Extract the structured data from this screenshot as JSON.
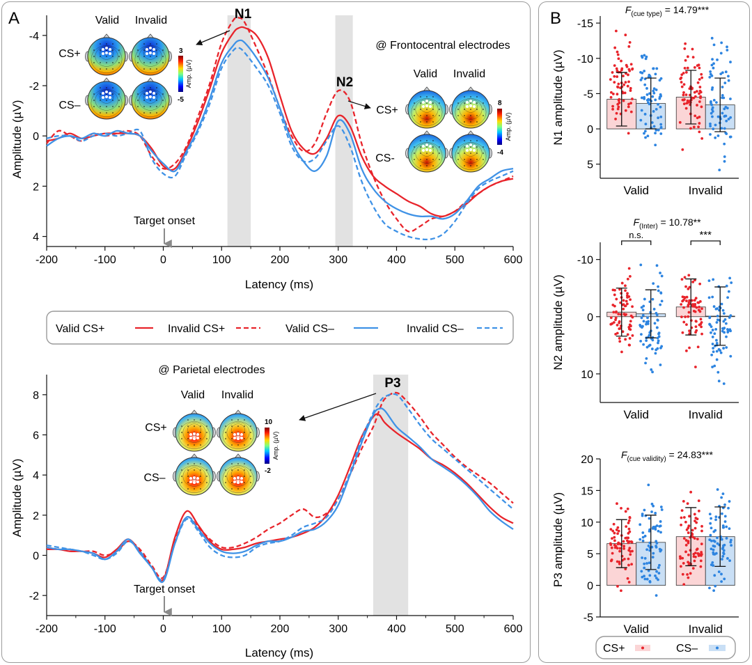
{
  "panels": {
    "A": "A",
    "B": "B"
  },
  "colors": {
    "red": "#e8242b",
    "blue": "#3f92e6",
    "bar_red": "#fbd5d6",
    "bar_blue": "#c9dff5",
    "gray_band": "#e2e2e2",
    "dot_red": "#e8242b",
    "dot_blue": "#2d84e0"
  },
  "legend": {
    "valid_csplus": "Valid CS+",
    "invalid_csplus": "Invalid CS+",
    "valid_csminus": "Valid CS–",
    "invalid_csminus": "Invalid CS–"
  },
  "legend_b": {
    "csplus": "CS+",
    "csminus": "CS–"
  },
  "topo": {
    "top": {
      "valid": "Valid",
      "invalid": "Invalid",
      "csplus": "CS+",
      "csminus": "CS–",
      "cb_max": "3",
      "cb_min": "-5",
      "cb_label": "Amp. (µV)"
    },
    "n2": {
      "valid": "Valid",
      "invalid": "Invalid",
      "csplus": "CS+",
      "csminus": "CS-",
      "cb_max": "8",
      "cb_min": "-4",
      "cb_label": "Amp. (µV)"
    },
    "p3": {
      "valid": "Valid",
      "invalid": "Invalid",
      "csplus": "CS+",
      "csminus": "CS–",
      "cb_max": "10",
      "cb_min": "-2",
      "cb_label": "Amp. (µV)"
    }
  },
  "chart_data": [
    {
      "id": "erp_frontocentral",
      "type": "line",
      "annotation": "@ Frontocentral electrodes",
      "xlabel": "Latency (ms)",
      "ylabel": "Amplitude (µV)",
      "xlim": [
        -200,
        600
      ],
      "ylim": [
        4.4,
        -4.8
      ],
      "y_inverted": true,
      "x_ticks": [
        -200,
        -100,
        0,
        100,
        200,
        300,
        400,
        500,
        600
      ],
      "y_ticks": [
        -4,
        -2,
        0,
        2,
        4
      ],
      "y_tick_labels": [
        "-4",
        "-2",
        "0",
        "2",
        "4"
      ],
      "components": [
        {
          "name": "N1",
          "range": [
            110,
            150
          ]
        },
        {
          "name": "N2",
          "range": [
            295,
            325
          ]
        }
      ],
      "marker_label": "Target onset",
      "x": [
        -200,
        -180,
        -160,
        -140,
        -120,
        -100,
        -80,
        -60,
        -40,
        -20,
        0,
        20,
        40,
        60,
        80,
        100,
        120,
        130,
        140,
        160,
        180,
        200,
        220,
        240,
        260,
        280,
        300,
        320,
        340,
        360,
        380,
        400,
        420,
        440,
        460,
        480,
        500,
        520,
        540,
        560,
        580,
        600
      ],
      "series": [
        {
          "name": "Valid CS+",
          "style": "solid",
          "color": "#e8242b",
          "values": [
            0.2,
            0.1,
            -0.1,
            0.1,
            0.0,
            -0.1,
            -0.1,
            -0.1,
            0.0,
            0.5,
            1.2,
            1.3,
            0.5,
            -0.6,
            -1.9,
            -3.3,
            -4.1,
            -4.3,
            -4.3,
            -4.0,
            -3.1,
            -1.6,
            -0.2,
            0.5,
            0.7,
            0.1,
            -0.8,
            -0.4,
            0.8,
            1.6,
            2.0,
            2.3,
            2.6,
            2.8,
            3.1,
            3.2,
            3.0,
            2.7,
            2.3,
            2.0,
            1.8,
            1.7
          ]
        },
        {
          "name": "Invalid CS+",
          "style": "dashed",
          "color": "#e8242b",
          "values": [
            0.3,
            -0.2,
            0.0,
            0.2,
            -0.1,
            0.0,
            -0.1,
            -0.2,
            0.0,
            0.8,
            1.3,
            1.1,
            0.4,
            -0.8,
            -2.1,
            -3.7,
            -4.6,
            -4.7,
            -4.5,
            -3.5,
            -2.4,
            -1.1,
            0.0,
            0.6,
            0.3,
            -0.9,
            -1.8,
            -1.4,
            0.3,
            1.6,
            2.6,
            3.3,
            3.8,
            3.6,
            3.3,
            3.2,
            3.0,
            2.6,
            2.3,
            2.0,
            1.8,
            1.6
          ]
        },
        {
          "name": "Valid CS–",
          "style": "solid",
          "color": "#3f92e6",
          "values": [
            0.4,
            0.1,
            0.0,
            0.1,
            -0.1,
            0.0,
            -0.2,
            -0.1,
            0.0,
            0.6,
            1.1,
            1.4,
            0.6,
            -0.3,
            -1.5,
            -2.9,
            -3.6,
            -3.8,
            -3.7,
            -3.1,
            -2.3,
            -1.1,
            0.2,
            1.0,
            1.4,
            0.8,
            -0.6,
            -0.1,
            1.3,
            2.1,
            2.6,
            2.9,
            3.1,
            3.2,
            3.2,
            3.3,
            3.1,
            2.6,
            2.0,
            1.7,
            1.4,
            1.3
          ]
        },
        {
          "name": "Invalid CS–",
          "style": "dashed",
          "color": "#3f92e6",
          "values": [
            0.1,
            0.0,
            0.0,
            0.2,
            0.0,
            -0.1,
            0.0,
            -0.1,
            -0.2,
            0.9,
            1.5,
            1.6,
            0.7,
            -0.2,
            -1.3,
            -2.7,
            -3.4,
            -3.5,
            -3.3,
            -2.7,
            -2.0,
            -0.9,
            0.4,
            1.0,
            0.9,
            0.2,
            -0.4,
            0.4,
            1.8,
            2.8,
            3.5,
            3.8,
            4.0,
            4.1,
            4.1,
            3.9,
            3.4,
            2.7,
            2.1,
            1.8,
            1.6,
            1.4
          ]
        }
      ]
    },
    {
      "id": "erp_parietal",
      "type": "line",
      "annotation": "@ Parietal electrodes",
      "xlabel": "Latency (ms)",
      "ylabel": "Amplitude (µV)",
      "xlim": [
        -200,
        600
      ],
      "ylim": [
        -3,
        9
      ],
      "x_ticks": [
        -200,
        -100,
        0,
        100,
        200,
        300,
        400,
        500,
        600
      ],
      "y_ticks": [
        -2,
        0,
        2,
        4,
        6,
        8
      ],
      "components": [
        {
          "name": "P3",
          "range": [
            360,
            420
          ]
        }
      ],
      "marker_label": "Target onset",
      "x": [
        -200,
        -180,
        -160,
        -140,
        -120,
        -100,
        -80,
        -60,
        -40,
        -20,
        0,
        20,
        40,
        60,
        80,
        100,
        120,
        140,
        160,
        180,
        200,
        220,
        240,
        260,
        280,
        300,
        320,
        340,
        360,
        370,
        380,
        400,
        420,
        440,
        460,
        480,
        500,
        520,
        540,
        560,
        580,
        600
      ],
      "series": [
        {
          "name": "Valid CS+",
          "style": "solid",
          "color": "#e8242b",
          "values": [
            0.3,
            0.3,
            0.2,
            0.2,
            0.1,
            -0.1,
            0.3,
            0.8,
            0.2,
            -0.6,
            -1.2,
            0.9,
            2.2,
            1.5,
            0.7,
            0.3,
            0.3,
            0.4,
            0.6,
            0.7,
            0.8,
            0.9,
            1.1,
            1.4,
            2.0,
            3.0,
            4.4,
            5.9,
            6.9,
            7.0,
            6.6,
            6.1,
            5.7,
            5.3,
            4.8,
            4.5,
            4.1,
            3.6,
            3.0,
            2.4,
            1.9,
            1.6
          ]
        },
        {
          "name": "Invalid CS+",
          "style": "dashed",
          "color": "#e8242b",
          "values": [
            0.4,
            0.3,
            0.3,
            0.2,
            0.2,
            0.0,
            0.2,
            0.7,
            0.3,
            -0.5,
            -1.1,
            0.7,
            1.9,
            1.4,
            0.8,
            0.4,
            0.4,
            0.6,
            0.9,
            1.3,
            1.6,
            2.0,
            2.3,
            1.9,
            2.1,
            2.8,
            4.0,
            5.3,
            6.4,
            7.2,
            7.8,
            8.1,
            7.6,
            6.9,
            6.1,
            5.5,
            4.9,
            4.4,
            4.0,
            3.6,
            3.1,
            2.6
          ]
        },
        {
          "name": "Valid CS–",
          "style": "solid",
          "color": "#3f92e6",
          "values": [
            0.4,
            0.3,
            0.3,
            0.2,
            0.1,
            -0.2,
            0.2,
            0.8,
            0.1,
            -0.6,
            -1.3,
            0.6,
            1.9,
            1.3,
            0.6,
            0.2,
            0.1,
            0.2,
            0.5,
            0.7,
            0.7,
            0.9,
            1.2,
            1.3,
            1.7,
            2.5,
            4.0,
            5.6,
            7.0,
            7.3,
            7.2,
            6.4,
            5.9,
            5.4,
            4.8,
            4.4,
            4.0,
            3.5,
            2.9,
            2.2,
            1.7,
            1.3
          ]
        },
        {
          "name": "Invalid CS–",
          "style": "dashed",
          "color": "#3f92e6",
          "values": [
            0.5,
            0.4,
            0.3,
            0.2,
            0.0,
            -0.2,
            0.1,
            0.7,
            0.2,
            -0.6,
            -1.2,
            0.6,
            1.8,
            1.2,
            0.4,
            0.0,
            -0.1,
            0.0,
            0.4,
            0.6,
            0.7,
            1.0,
            1.4,
            1.6,
            1.9,
            2.8,
            4.1,
            5.8,
            7.1,
            7.6,
            7.9,
            8.0,
            7.3,
            6.5,
            5.8,
            5.3,
            4.8,
            4.3,
            3.8,
            3.3,
            2.8,
            2.3
          ]
        }
      ]
    },
    {
      "id": "n1_amp",
      "type": "bar",
      "ylabel": "N1 amplitude (µV)",
      "stat": {
        "italic": "F",
        "sub": "(cue type)",
        "text": " = 14.79***"
      },
      "categories": [
        "Valid",
        "Invalid"
      ],
      "ylim": [
        7,
        -16
      ],
      "y_inverted": true,
      "y_ticks": [
        -15,
        -10,
        -5,
        0,
        5
      ],
      "series": [
        {
          "name": "CS+",
          "values": [
            -4.2,
            -4.5
          ],
          "sd": [
            3.8,
            3.8
          ]
        },
        {
          "name": "CS–",
          "values": [
            -3.6,
            -3.4
          ],
          "sd": [
            3.6,
            3.8
          ]
        }
      ],
      "dots_range": [
        [
          -15,
          3
        ],
        [
          -12.5,
          5
        ],
        [
          -15,
          5
        ],
        [
          -14.5,
          6.5
        ]
      ]
    },
    {
      "id": "n2_amp",
      "type": "bar",
      "ylabel": "N2 amplitude (µV)",
      "stat": {
        "italic": "F",
        "sub": "(Inter)",
        "text": " = 10.78**"
      },
      "categories": [
        "Valid",
        "Invalid"
      ],
      "ylim": [
        15,
        -13
      ],
      "y_inverted": true,
      "y_ticks": [
        -10,
        0,
        10
      ],
      "series": [
        {
          "name": "CS+",
          "values": [
            -0.8,
            -1.7
          ],
          "sd": [
            4.2,
            4.9
          ]
        },
        {
          "name": "CS–",
          "values": [
            -0.5,
            -0.1
          ],
          "sd": [
            4.2,
            5.1
          ]
        }
      ],
      "significance": [
        {
          "category": "Valid",
          "label": "n.s."
        },
        {
          "category": "Invalid",
          "label": "***"
        }
      ],
      "dots_range": [
        [
          -11,
          9.5
        ],
        [
          -10.5,
          12.5
        ],
        [
          -11,
          9.5
        ],
        [
          -10.5,
          13.5
        ]
      ]
    },
    {
      "id": "p3_amp",
      "type": "bar",
      "ylabel": "P3 amplitude (µV)",
      "stat": {
        "italic": "F",
        "sub": "(cue validity)",
        "text": " = 24.83***"
      },
      "categories": [
        "Valid",
        "Invalid"
      ],
      "ylim": [
        -5,
        20
      ],
      "y_ticks": [
        -5,
        0,
        5,
        10,
        15,
        20
      ],
      "series": [
        {
          "name": "CS+",
          "values": [
            6.6,
            7.7
          ],
          "sd": [
            3.8,
            4.6
          ]
        },
        {
          "name": "CS–",
          "values": [
            6.8,
            7.7
          ],
          "sd": [
            4.3,
            4.7
          ]
        }
      ],
      "dots_range": [
        [
          -2.5,
          14.5
        ],
        [
          -3.5,
          16.5
        ],
        [
          -3,
          17
        ],
        [
          -3,
          18
        ]
      ]
    }
  ]
}
